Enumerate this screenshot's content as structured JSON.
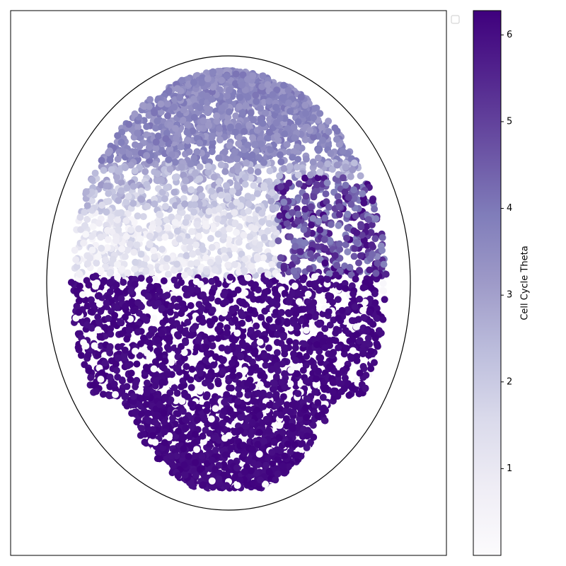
{
  "chart_data": {
    "type": "scatter",
    "title": "",
    "xlabel": "",
    "ylabel": "",
    "colorbar": {
      "label": "Cell Cycle Theta",
      "range": [
        0,
        6.28
      ],
      "ticks": [
        1,
        2,
        3,
        4,
        5,
        6
      ],
      "tick_labels": [
        "1",
        "2",
        "3",
        "4",
        "5",
        "6"
      ],
      "colormap": "Purples",
      "color_stops": [
        "#fcfbfd",
        "#efedf5",
        "#dadaeb",
        "#bcbddc",
        "#9e9ac8",
        "#807dba",
        "#6a51a3",
        "#54278f",
        "#3f007d"
      ]
    },
    "axes_frame": true,
    "axis_ticks_visible": false,
    "grid": false,
    "legend": {
      "placement": "top-right",
      "entries": []
    },
    "boundary": {
      "shape": "ellipse",
      "edge_color": "#000000"
    },
    "series": [
      {
        "region": "top",
        "theta_range": [
          3.0,
          4.3
        ]
      },
      {
        "region": "upper-middle",
        "theta_range": [
          0.1,
          2.2
        ]
      },
      {
        "region": "right",
        "theta_range": [
          3.6,
          5.6
        ]
      },
      {
        "region": "bottom",
        "theta_range": [
          5.9,
          6.28
        ]
      },
      {
        "region": "bottom-speckle",
        "theta_range": [
          0.0,
          0.3
        ]
      }
    ]
  }
}
